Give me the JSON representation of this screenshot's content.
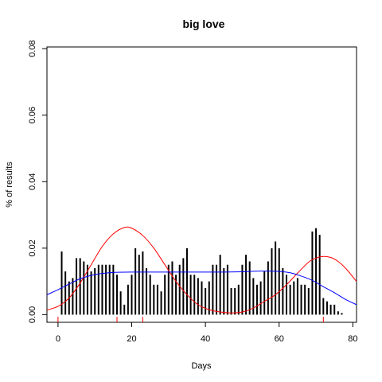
{
  "chart_data": {
    "type": "bar",
    "title": "big love",
    "xlabel": "Days",
    "ylabel": "% of results",
    "xlim": [
      -3,
      81
    ],
    "ylim": [
      -0.0023,
      0.0805
    ],
    "x_ticks": [
      0,
      20,
      40,
      60,
      80
    ],
    "y_ticks": [
      0.0,
      0.02,
      0.04,
      0.06,
      0.08
    ],
    "y_tick_labels": [
      "0.00",
      "0.02",
      "0.04",
      "0.06",
      "0.08"
    ],
    "grid": false,
    "bar_color": "#000000",
    "bars": {
      "x": [
        1,
        2,
        3,
        4,
        5,
        6,
        7,
        8,
        9,
        10,
        11,
        12,
        13,
        14,
        15,
        16,
        17,
        18,
        19,
        20,
        21,
        22,
        23,
        24,
        25,
        26,
        27,
        28,
        29,
        30,
        31,
        32,
        33,
        34,
        35,
        36,
        37,
        38,
        39,
        40,
        41,
        42,
        43,
        44,
        45,
        46,
        47,
        48,
        49,
        50,
        51,
        52,
        53,
        54,
        55,
        56,
        57,
        58,
        59,
        60,
        61,
        62,
        63,
        64,
        65,
        66,
        67,
        68,
        69,
        70,
        71,
        72,
        73,
        74,
        75,
        76,
        77
      ],
      "values": [
        0.019,
        0.013,
        0.01,
        0.011,
        0.017,
        0.017,
        0.016,
        0.015,
        0.013,
        0.014,
        0.015,
        0.015,
        0.015,
        0.015,
        0.015,
        0.012,
        0.007,
        0.003,
        0.009,
        0.012,
        0.02,
        0.018,
        0.019,
        0.014,
        0.012,
        0.009,
        0.009,
        0.007,
        0.012,
        0.015,
        0.016,
        0.012,
        0.015,
        0.017,
        0.02,
        0.012,
        0.012,
        0.011,
        0.01,
        0.008,
        0.01,
        0.015,
        0.015,
        0.018,
        0.014,
        0.015,
        0.008,
        0.008,
        0.009,
        0.015,
        0.018,
        0.016,
        0.011,
        0.009,
        0.01,
        0.013,
        0.016,
        0.02,
        0.022,
        0.02,
        0.014,
        0.012,
        0.009,
        0.01,
        0.011,
        0.009,
        0.009,
        0.008,
        0.025,
        0.026,
        0.024,
        0.005,
        0.004,
        0.003,
        0.003,
        0.001,
        0.0005
      ]
    },
    "series": [
      {
        "color": "#ff0000",
        "x": [
          -3,
          0,
          3,
          6,
          9,
          12,
          15,
          18,
          20,
          23,
          26,
          29,
          32,
          35,
          38,
          41,
          44,
          47,
          50,
          53,
          56,
          59,
          62,
          65,
          68,
          70,
          72,
          74,
          76,
          78,
          81
        ],
        "values": [
          0.0014,
          0.0025,
          0.005,
          0.0095,
          0.015,
          0.0205,
          0.0243,
          0.0262,
          0.026,
          0.0238,
          0.02,
          0.015,
          0.01,
          0.006,
          0.003,
          0.0015,
          0.0008,
          0.0005,
          0.0008,
          0.002,
          0.004,
          0.006,
          0.009,
          0.0125,
          0.0158,
          0.017,
          0.0175,
          0.0172,
          0.016,
          0.014,
          0.01
        ]
      },
      {
        "color": "#0000ff",
        "x": [
          -3,
          0,
          3,
          6,
          9,
          12,
          15,
          20,
          25,
          30,
          35,
          40,
          45,
          50,
          55,
          60,
          63,
          66,
          69,
          72,
          75,
          78,
          81
        ],
        "values": [
          0.006,
          0.0075,
          0.0092,
          0.0108,
          0.0118,
          0.0124,
          0.0127,
          0.0128,
          0.0128,
          0.0128,
          0.0128,
          0.0128,
          0.0128,
          0.0129,
          0.0131,
          0.013,
          0.0126,
          0.0116,
          0.0103,
          0.0084,
          0.0066,
          0.0046,
          0.003
        ]
      }
    ],
    "rug": {
      "color": "#ff0000",
      "x": [
        0,
        16,
        23,
        72
      ]
    }
  }
}
